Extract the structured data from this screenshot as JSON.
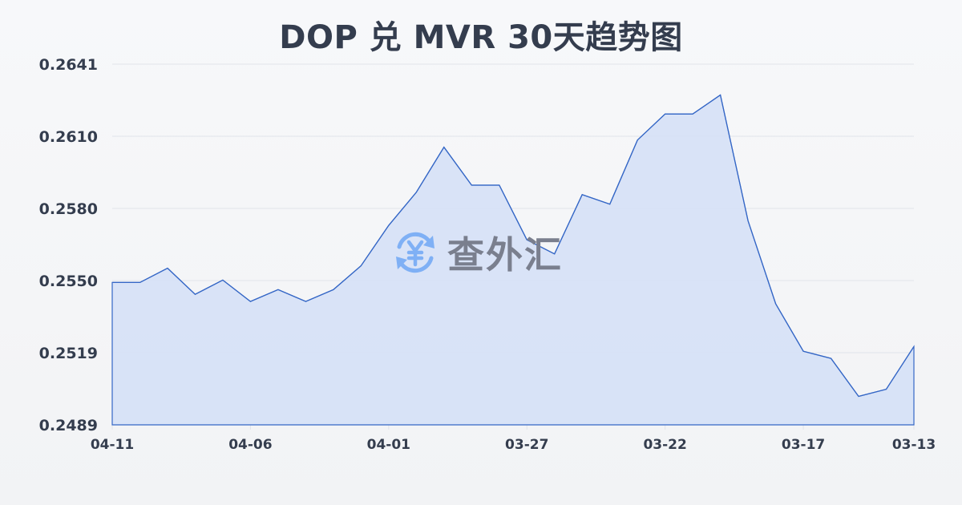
{
  "title": "DOP 兑 MVR 30天趋势图",
  "watermark": {
    "text": "查外汇",
    "icon": "yen-exchange-icon",
    "icon_color": "#7fb0f5",
    "text_color": "#7a7f8e"
  },
  "colors": {
    "line": "#3567c6",
    "fill": "#d6e1f6",
    "grid": "#e1e4ea",
    "text": "#343d4e",
    "background": "#f5f6f8"
  },
  "chart_data": {
    "type": "area",
    "title": "DOP 兑 MVR 30天趋势图",
    "xlabel": "",
    "ylabel": "",
    "ylim": [
      0.2489,
      0.2641
    ],
    "yticks": [
      "0.2641",
      "0.2610",
      "0.2580",
      "0.2550",
      "0.2519",
      "0.2489"
    ],
    "xticks": [
      "04-11",
      "04-06",
      "04-01",
      "03-27",
      "03-22",
      "03-17",
      "03-13"
    ],
    "grid": true,
    "legend": null,
    "categories": [
      "04-11",
      "04-10",
      "04-09",
      "04-08",
      "04-07",
      "04-06",
      "04-05",
      "04-04",
      "04-03",
      "04-02",
      "04-01",
      "03-31",
      "03-30",
      "03-29",
      "03-28",
      "03-27",
      "03-26",
      "03-25",
      "03-24",
      "03-23",
      "03-22",
      "03-21",
      "03-20",
      "03-19",
      "03-18",
      "03-17",
      "03-16",
      "03-15",
      "03-14",
      "03-13"
    ],
    "series": [
      {
        "name": "DOP/MVR",
        "values": [
          0.2549,
          0.2549,
          0.2555,
          0.2544,
          0.255,
          0.2541,
          0.2546,
          0.2541,
          0.2546,
          0.2556,
          0.2573,
          0.2587,
          0.2606,
          0.259,
          0.259,
          0.2567,
          0.2561,
          0.2586,
          0.2582,
          0.2609,
          0.262,
          0.262,
          0.2628,
          0.2575,
          0.254,
          0.252,
          0.2517,
          0.2501,
          0.2504,
          0.2522
        ]
      }
    ]
  }
}
